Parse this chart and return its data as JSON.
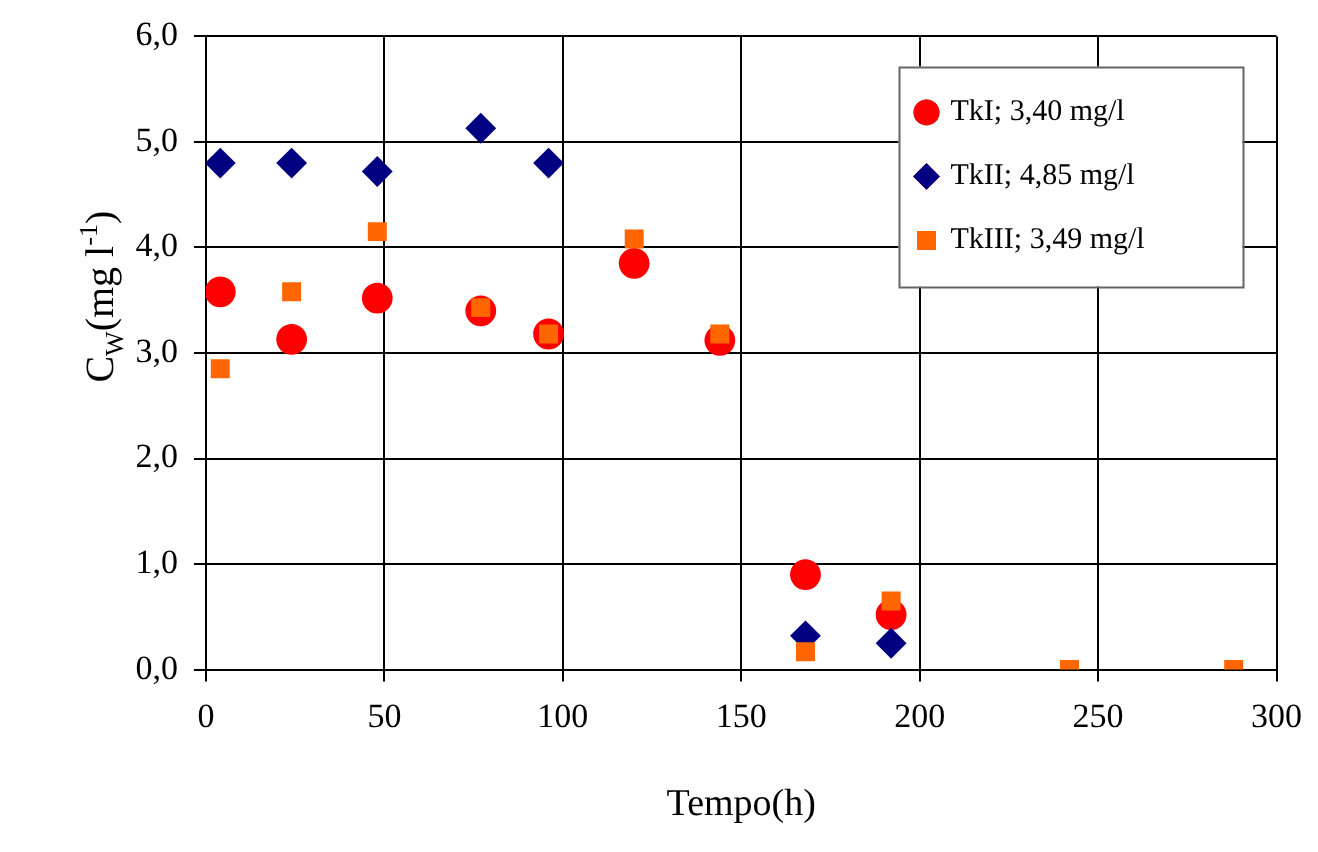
{
  "chart_data": {
    "type": "scatter",
    "xlabel": "Tempo(h)",
    "ylabel": "C$_{W}$(mg l$^{-1}$)",
    "x": [
      4,
      24,
      48,
      77,
      96,
      120,
      144,
      168,
      192,
      242,
      288
    ],
    "series": [
      {
        "name": "TkI; 3,40 mg/l",
        "color": "#ff0000",
        "marker": "circle",
        "values": [
          3.58,
          3.13,
          3.52,
          3.4,
          3.18,
          3.85,
          3.12,
          0.9,
          0.52,
          null,
          null
        ]
      },
      {
        "name": "TkII; 4,85 mg/l",
        "color": "#000080",
        "marker": "diamond",
        "values": [
          4.8,
          4.8,
          4.72,
          5.13,
          4.8,
          null,
          null,
          0.32,
          0.25,
          null,
          null
        ]
      },
      {
        "name": "TkIII; 3,49 mg/l",
        "color": "#ff6600",
        "marker": "square",
        "values": [
          2.85,
          3.58,
          4.15,
          3.43,
          3.18,
          4.08,
          3.18,
          0.17,
          0.65,
          0,
          0
        ]
      }
    ],
    "xlim": [
      0,
      300
    ],
    "xticks": [
      0,
      50,
      100,
      150,
      200,
      250,
      300
    ],
    "ylim": [
      0,
      6
    ],
    "yticks": [
      {
        "value": 0,
        "label": "0,0"
      },
      {
        "value": 1,
        "label": "1,0"
      },
      {
        "value": 2,
        "label": "2,0"
      },
      {
        "value": 3,
        "label": "3,0"
      },
      {
        "value": 4,
        "label": "4,0"
      },
      {
        "value": 5,
        "label": "5,0"
      },
      {
        "value": 6,
        "label": "6,0"
      }
    ],
    "grid": true,
    "legend": "top right"
  }
}
